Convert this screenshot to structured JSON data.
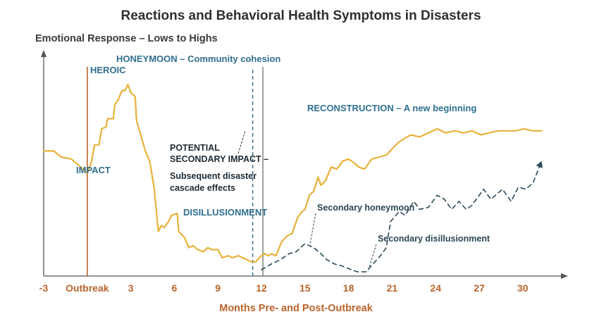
{
  "chart_data": {
    "type": "line",
    "title": "Reactions and Behavioral Health Symptoms in Disasters",
    "ylabel": "Emotional Response – Lows to Highs",
    "xlabel": "Months Pre- and Post-Outbreak",
    "x_ticks": [
      {
        "x": -3,
        "label": "-3"
      },
      {
        "x": 0,
        "label": "Outbreak"
      },
      {
        "x": 3,
        "label": "3"
      },
      {
        "x": 6,
        "label": "6"
      },
      {
        "x": 9,
        "label": "9"
      },
      {
        "x": 12,
        "label": "12"
      },
      {
        "x": 15,
        "label": "15"
      },
      {
        "x": 18,
        "label": "18"
      },
      {
        "x": 21,
        "label": "21"
      },
      {
        "x": 24,
        "label": "24"
      },
      {
        "x": 27,
        "label": "27"
      },
      {
        "x": 30,
        "label": "30"
      }
    ],
    "xlim": [
      -3,
      32
    ],
    "ylim": [
      0,
      100
    ],
    "markers": [
      {
        "x": 0,
        "style": "solid",
        "color": "#b9642b"
      },
      {
        "x": 11.4,
        "style": "dashed",
        "color": "#2f6f8f"
      },
      {
        "x": 12.1,
        "style": "solid",
        "color": "#8a8a8a"
      }
    ],
    "series": [
      {
        "style": "solid",
        "color": "#e8b13a",
        "points": [
          [
            -3,
            60
          ],
          [
            -2.3,
            60
          ],
          [
            -1.8,
            57
          ],
          [
            -1.1,
            56
          ],
          [
            -0.6,
            53
          ],
          [
            0,
            49
          ],
          [
            0.3,
            55
          ],
          [
            0.5,
            63
          ],
          [
            0.8,
            63
          ],
          [
            1.0,
            71
          ],
          [
            1.3,
            72
          ],
          [
            1.4,
            76
          ],
          [
            1.8,
            76
          ],
          [
            1.9,
            83
          ],
          [
            2.1,
            85
          ],
          [
            2.4,
            90
          ],
          [
            2.6,
            90
          ],
          [
            2.8,
            93
          ],
          [
            3.0,
            89
          ],
          [
            3.3,
            87
          ],
          [
            3.4,
            75
          ],
          [
            3.6,
            70
          ],
          [
            3.8,
            65
          ],
          [
            4.0,
            60
          ],
          [
            4.3,
            55
          ],
          [
            4.6,
            42
          ],
          [
            4.9,
            20
          ],
          [
            5.1,
            23
          ],
          [
            5.3,
            22
          ],
          [
            5.6,
            25
          ],
          [
            5.8,
            28
          ],
          [
            6.2,
            29
          ],
          [
            6.3,
            20
          ],
          [
            6.7,
            17
          ],
          [
            7.0,
            12
          ],
          [
            7.3,
            13
          ],
          [
            7.6,
            11
          ],
          [
            8.0,
            10
          ],
          [
            8.3,
            12
          ],
          [
            8.6,
            11
          ],
          [
            9.0,
            11
          ],
          [
            9.3,
            7
          ],
          [
            9.7,
            8
          ],
          [
            10.0,
            7
          ],
          [
            10.4,
            8
          ],
          [
            11.0,
            6
          ],
          [
            11.3,
            5
          ],
          [
            11.6,
            5
          ],
          [
            12.0,
            8
          ],
          [
            12.2,
            9
          ],
          [
            12.5,
            8
          ],
          [
            12.7,
            9
          ],
          [
            13.0,
            8
          ],
          [
            13.4,
            15
          ],
          [
            13.8,
            18
          ],
          [
            14.1,
            19
          ],
          [
            14.5,
            27
          ],
          [
            14.8,
            30
          ],
          [
            15.0,
            31
          ],
          [
            15.3,
            38
          ],
          [
            15.6,
            40
          ],
          [
            15.9,
            47
          ],
          [
            16.1,
            43
          ],
          [
            16.4,
            45
          ],
          [
            16.8,
            52
          ],
          [
            17.2,
            51
          ],
          [
            17.6,
            55
          ],
          [
            18.0,
            56
          ],
          [
            18.4,
            54
          ],
          [
            18.7,
            52
          ],
          [
            19.1,
            51
          ],
          [
            19.6,
            56
          ],
          [
            20.1,
            57
          ],
          [
            20.6,
            58
          ],
          [
            21.0,
            61
          ],
          [
            21.4,
            64
          ],
          [
            21.8,
            66
          ],
          [
            22.3,
            68
          ],
          [
            22.9,
            67
          ],
          [
            23.5,
            69
          ],
          [
            24.1,
            71
          ],
          [
            24.7,
            69
          ],
          [
            25.3,
            70
          ],
          [
            25.9,
            69
          ],
          [
            26.5,
            70
          ],
          [
            27.1,
            68
          ],
          [
            27.7,
            69
          ],
          [
            28.3,
            70
          ],
          [
            28.9,
            70
          ],
          [
            29.5,
            70
          ],
          [
            30.1,
            71
          ],
          [
            30.7,
            70
          ],
          [
            31.3,
            70
          ]
        ]
      },
      {
        "style": "dashed",
        "color": "#2b4a5a",
        "points": [
          [
            12.0,
            1
          ],
          [
            12.7,
            4
          ],
          [
            13.3,
            6
          ],
          [
            13.9,
            9
          ],
          [
            14.4,
            10
          ],
          [
            15.0,
            14
          ],
          [
            15.6,
            12
          ],
          [
            16.1,
            9
          ],
          [
            16.5,
            6
          ],
          [
            17.0,
            4
          ],
          [
            17.5,
            3
          ],
          [
            18.2,
            1
          ],
          [
            18.6,
            0
          ],
          [
            19.2,
            0
          ],
          [
            19.7,
            4
          ],
          [
            20.2,
            8
          ],
          [
            20.6,
            12
          ],
          [
            20.9,
            25
          ],
          [
            21.5,
            30
          ],
          [
            21.9,
            28
          ],
          [
            22.5,
            35
          ],
          [
            22.9,
            31
          ],
          [
            23.5,
            32
          ],
          [
            24.1,
            38
          ],
          [
            24.6,
            36
          ],
          [
            25.1,
            31
          ],
          [
            25.6,
            35
          ],
          [
            26.1,
            31
          ],
          [
            26.5,
            33
          ],
          [
            27.3,
            41
          ],
          [
            27.8,
            36
          ],
          [
            28.6,
            41
          ],
          [
            29.2,
            35
          ],
          [
            29.7,
            42
          ],
          [
            30.2,
            41
          ],
          [
            30.7,
            44
          ],
          [
            31.3,
            55
          ]
        ]
      }
    ],
    "annotations": [
      {
        "name": "heroic",
        "text": [
          "HEROIC"
        ],
        "color": "#2f6f8f",
        "pointer": false
      },
      {
        "name": "honeymoon",
        "text": [
          "HONEYMOON – Community cohesion"
        ],
        "color": "#2f6f8f",
        "pointer": false
      },
      {
        "name": "impact",
        "text": [
          "IMPACT"
        ],
        "color": "#2f6f8f",
        "pointer": false
      },
      {
        "name": "reconstruction",
        "text": [
          "RECONSTRUCTION – A new beginning"
        ],
        "color": "#2f6f8f",
        "pointer": false
      },
      {
        "name": "potential-impact",
        "text": [
          "POTENTIAL",
          "SECONDARY IMPACT –"
        ],
        "color": "#1e2a33",
        "pointer": true
      },
      {
        "name": "cascade",
        "text": [
          "Subsequent disaster",
          "cascade effects"
        ],
        "color": "#1e2a33",
        "pointer": false
      },
      {
        "name": "disillusionment",
        "text": [
          "DISILLUSIONMENT"
        ],
        "color": "#2f6f8f",
        "pointer": false
      },
      {
        "name": "secondary-honeymoon",
        "text": [
          "Secondary honeymoon"
        ],
        "color": "#2b4654",
        "pointer": true
      },
      {
        "name": "secondary-disillusionment",
        "text": [
          "Secondary disillusionment"
        ],
        "color": "#2b4654",
        "pointer": true
      }
    ]
  }
}
